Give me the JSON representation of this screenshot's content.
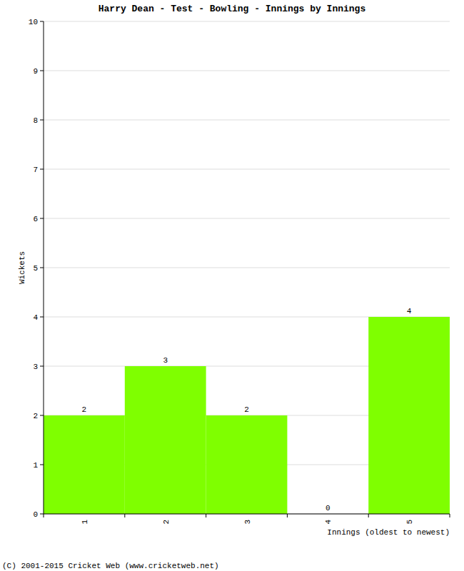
{
  "chart_data": {
    "type": "bar",
    "title": "Harry Dean - Test - Bowling - Innings by Innings",
    "x_label": "Innings (oldest to newest)",
    "y_label": "Wickets",
    "footer": "(C) 2001-2015 Cricket Web (www.cricketweb.net)",
    "categories": [
      "1",
      "2",
      "3",
      "4",
      "5"
    ],
    "values": [
      2,
      3,
      2,
      0,
      4
    ],
    "color": "#7fff00",
    "ylim": [
      0,
      10
    ],
    "yticks": [
      0,
      1,
      2,
      3,
      4,
      5,
      6,
      7,
      8,
      9,
      10
    ],
    "grid": true,
    "data_labels": true
  }
}
